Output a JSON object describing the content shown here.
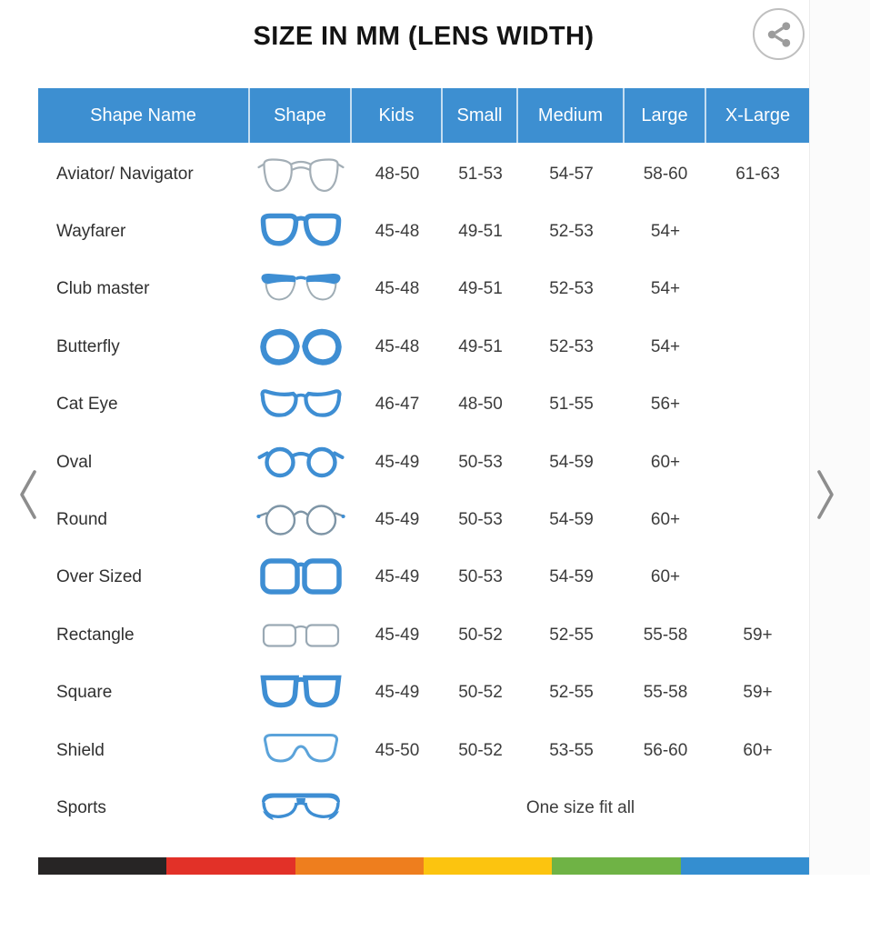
{
  "title": "SIZE IN MM (LENS WIDTH)",
  "icons": {
    "share": "share-icon",
    "prev": "chevron-left-icon",
    "next": "chevron-right-icon"
  },
  "table": {
    "headers": [
      "Shape Name",
      "Shape",
      "Kids",
      "Small",
      "Medium",
      "Large",
      "X-Large"
    ],
    "rows": [
      {
        "name": "Aviator/ Navigator",
        "icon": "aviator",
        "sizes": [
          "48-50",
          "51-53",
          "54-57",
          "58-60",
          "61-63"
        ]
      },
      {
        "name": "Wayfarer",
        "icon": "wayfarer",
        "sizes": [
          "45-48",
          "49-51",
          "52-53",
          "54+",
          ""
        ]
      },
      {
        "name": "Club master",
        "icon": "clubmaster",
        "sizes": [
          "45-48",
          "49-51",
          "52-53",
          "54+",
          ""
        ]
      },
      {
        "name": "Butterfly",
        "icon": "butterfly",
        "sizes": [
          "45-48",
          "49-51",
          "52-53",
          "54+",
          ""
        ]
      },
      {
        "name": "Cat Eye",
        "icon": "cateye",
        "sizes": [
          "46-47",
          "48-50",
          "51-55",
          "56+",
          ""
        ]
      },
      {
        "name": "Oval",
        "icon": "oval",
        "sizes": [
          "45-49",
          "50-53",
          "54-59",
          "60+",
          ""
        ]
      },
      {
        "name": "Round",
        "icon": "round",
        "sizes": [
          "45-49",
          "50-53",
          "54-59",
          "60+",
          ""
        ]
      },
      {
        "name": "Over Sized",
        "icon": "oversized",
        "sizes": [
          "45-49",
          "50-53",
          "54-59",
          "60+",
          ""
        ]
      },
      {
        "name": "Rectangle",
        "icon": "rectangle",
        "sizes": [
          "45-49",
          "50-52",
          "52-55",
          "55-58",
          "59+"
        ]
      },
      {
        "name": "Square",
        "icon": "square",
        "sizes": [
          "45-49",
          "50-52",
          "52-55",
          "55-58",
          "59+"
        ]
      },
      {
        "name": "Shield",
        "icon": "shield",
        "sizes": [
          "45-50",
          "50-52",
          "53-55",
          "56-60",
          "60+"
        ]
      },
      {
        "name": "Sports",
        "icon": "sports",
        "span_text": "One size fit all"
      }
    ]
  },
  "colors": {
    "header_bg": "#3d8fd1",
    "frame_blue": "#3e8ed3",
    "header_text": "#ffffff",
    "body_text": "#3c3c3c",
    "chevron": "#8d8d8d",
    "share_icon": "#9c9c9c"
  },
  "footer_bar": {
    "colors": [
      "#272525",
      "#e23128",
      "#ee7e1e",
      "#fcc40f",
      "#6fb345",
      "#348ed0"
    ]
  }
}
